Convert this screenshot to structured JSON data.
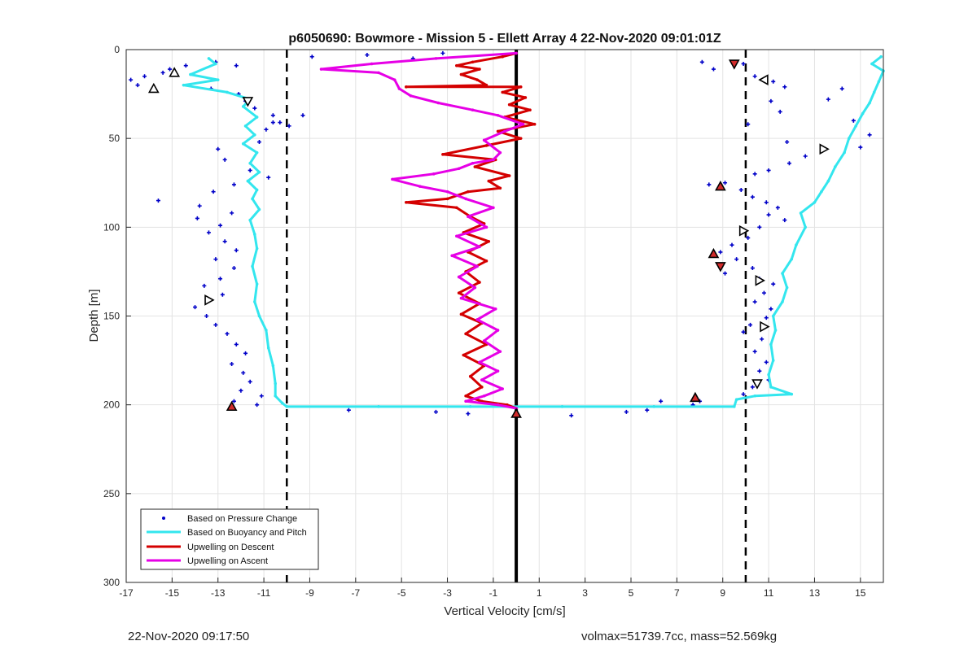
{
  "chart_data": {
    "type": "scatter",
    "title": "p6050690: Bowmore - Mission 5 - Ellett Array 4 22-Nov-2020 09:01:01Z",
    "xlabel": "Vertical Velocity [cm/s]",
    "ylabel": "Depth [m]",
    "xlim": [
      -17,
      16
    ],
    "ylim": [
      0,
      300
    ],
    "y_reversed": true,
    "grid": true,
    "x_ticks": [
      -17,
      -15,
      -13,
      -11,
      -9,
      -7,
      -5,
      -3,
      -1,
      1,
      3,
      5,
      7,
      9,
      11,
      13,
      15
    ],
    "y_ticks": [
      0,
      50,
      100,
      150,
      200,
      250,
      300
    ],
    "legend_position": "bottom-left",
    "colors": {
      "pressure": "#0000c8",
      "buoyancy": "#33e6ee",
      "descent": "#d40000",
      "ascent": "#e600e6",
      "guides": "#000000",
      "grid": "#e3e3e3",
      "triangle_fill": "#d22b2b"
    },
    "guide_lines": [
      {
        "x": -10,
        "style": "dashed"
      },
      {
        "x": 0,
        "style": "solid"
      },
      {
        "x": 10,
        "style": "dashed"
      }
    ],
    "series": [
      {
        "name": "Based on Pressure Change",
        "kind": "points",
        "points": [
          [
            -16.8,
            17
          ],
          [
            -16.5,
            20
          ],
          [
            -16.2,
            15
          ],
          [
            -15.4,
            13
          ],
          [
            -15.1,
            11
          ],
          [
            -14.4,
            9
          ],
          [
            -13.1,
            7
          ],
          [
            -12.2,
            9
          ],
          [
            -13.3,
            22
          ],
          [
            -12.1,
            25
          ],
          [
            -11.8,
            29
          ],
          [
            -11.4,
            33
          ],
          [
            -10.6,
            37
          ],
          [
            -10.3,
            41
          ],
          [
            -10.9,
            45
          ],
          [
            -11.2,
            52
          ],
          [
            -13.0,
            56
          ],
          [
            -12.7,
            62
          ],
          [
            -11.6,
            68
          ],
          [
            -10.8,
            72
          ],
          [
            -12.3,
            76
          ],
          [
            -13.2,
            80
          ],
          [
            -15.6,
            85
          ],
          [
            -13.8,
            88
          ],
          [
            -12.4,
            92
          ],
          [
            -13.9,
            95
          ],
          [
            -12.9,
            99
          ],
          [
            -13.4,
            103
          ],
          [
            -12.7,
            108
          ],
          [
            -12.2,
            113
          ],
          [
            -13.1,
            118
          ],
          [
            -12.3,
            123
          ],
          [
            -12.9,
            129
          ],
          [
            -13.6,
            133
          ],
          [
            -12.8,
            138
          ],
          [
            -14.0,
            145
          ],
          [
            -13.5,
            150
          ],
          [
            -13.1,
            155
          ],
          [
            -12.6,
            160
          ],
          [
            -12.2,
            166
          ],
          [
            -11.8,
            171
          ],
          [
            -12.4,
            177
          ],
          [
            -11.9,
            182
          ],
          [
            -11.6,
            187
          ],
          [
            -12.0,
            192
          ],
          [
            -11.1,
            195
          ],
          [
            -12.3,
            198
          ],
          [
            -11.3,
            200
          ],
          [
            -10.6,
            41
          ],
          [
            -9.9,
            43
          ],
          [
            -9.3,
            37
          ],
          [
            -8.9,
            4
          ],
          [
            -6.5,
            3
          ],
          [
            -4.5,
            5
          ],
          [
            -3.2,
            2
          ],
          [
            -7.3,
            203
          ],
          [
            -3.5,
            204
          ],
          [
            -2.1,
            205
          ],
          [
            2.4,
            206
          ],
          [
            4.8,
            204
          ],
          [
            5.7,
            203
          ],
          [
            6.3,
            198
          ],
          [
            8.1,
            7
          ],
          [
            8.6,
            11
          ],
          [
            9.9,
            8
          ],
          [
            10.4,
            15
          ],
          [
            11.2,
            18
          ],
          [
            11.7,
            21
          ],
          [
            11.1,
            29
          ],
          [
            11.5,
            35
          ],
          [
            10.1,
            42
          ],
          [
            11.8,
            52
          ],
          [
            12.6,
            60
          ],
          [
            11.9,
            64
          ],
          [
            11.0,
            68
          ],
          [
            10.4,
            70
          ],
          [
            9.1,
            75
          ],
          [
            8.4,
            76
          ],
          [
            9.8,
            79
          ],
          [
            10.3,
            83
          ],
          [
            10.9,
            86
          ],
          [
            11.4,
            89
          ],
          [
            11.0,
            93
          ],
          [
            11.7,
            96
          ],
          [
            10.6,
            100
          ],
          [
            10.1,
            106
          ],
          [
            9.4,
            110
          ],
          [
            8.9,
            114
          ],
          [
            9.6,
            118
          ],
          [
            10.3,
            123
          ],
          [
            9.1,
            126
          ],
          [
            10.6,
            129
          ],
          [
            11.2,
            132
          ],
          [
            10.8,
            137
          ],
          [
            10.4,
            142
          ],
          [
            11.1,
            146
          ],
          [
            10.9,
            151
          ],
          [
            10.2,
            155
          ],
          [
            9.9,
            159
          ],
          [
            10.7,
            163
          ],
          [
            10.4,
            170
          ],
          [
            10.9,
            176
          ],
          [
            10.6,
            181
          ],
          [
            11.0,
            186
          ],
          [
            10.3,
            190
          ],
          [
            9.9,
            194
          ],
          [
            8.0,
            198
          ],
          [
            7.7,
            200
          ],
          [
            15.4,
            48
          ],
          [
            15.0,
            55
          ],
          [
            14.7,
            40
          ],
          [
            14.2,
            22
          ],
          [
            13.6,
            28
          ]
        ]
      },
      {
        "name": "Based on Buoyancy and Pitch",
        "kind": "line",
        "points": [
          [
            -13.4,
            5
          ],
          [
            -13.1,
            8
          ],
          [
            -14.2,
            14
          ],
          [
            -13.0,
            17
          ],
          [
            -14.5,
            20
          ],
          [
            -12.6,
            24
          ],
          [
            -11.6,
            28
          ],
          [
            -11.9,
            32
          ],
          [
            -11.3,
            38
          ],
          [
            -11.8,
            43
          ],
          [
            -11.4,
            48
          ],
          [
            -11.9,
            53
          ],
          [
            -11.3,
            58
          ],
          [
            -11.6,
            64
          ],
          [
            -11.2,
            69
          ],
          [
            -11.7,
            74
          ],
          [
            -11.3,
            79
          ],
          [
            -11.5,
            84
          ],
          [
            -11.2,
            90
          ],
          [
            -11.6,
            96
          ],
          [
            -11.4,
            104
          ],
          [
            -11.3,
            112
          ],
          [
            -11.5,
            122
          ],
          [
            -11.3,
            132
          ],
          [
            -11.4,
            142
          ],
          [
            -11.2,
            150
          ],
          [
            -10.9,
            158
          ],
          [
            -10.8,
            168
          ],
          [
            -10.6,
            178
          ],
          [
            -10.5,
            188
          ],
          [
            -10.5,
            195
          ],
          [
            -10.2,
            199
          ],
          [
            -10.0,
            201
          ],
          [
            -6.0,
            201
          ],
          [
            -2.0,
            201
          ],
          [
            2.0,
            201
          ],
          [
            6.0,
            201
          ],
          [
            9.5,
            201
          ],
          [
            9.6,
            197
          ],
          [
            10.4,
            195
          ],
          [
            12.0,
            194
          ],
          [
            11.1,
            190
          ],
          [
            11.0,
            183
          ],
          [
            11.2,
            175
          ],
          [
            11.1,
            166
          ],
          [
            11.3,
            158
          ],
          [
            11.2,
            150
          ],
          [
            11.6,
            142
          ],
          [
            11.8,
            134
          ],
          [
            11.6,
            126
          ],
          [
            12.0,
            118
          ],
          [
            12.2,
            110
          ],
          [
            12.6,
            100
          ],
          [
            12.4,
            92
          ],
          [
            13.0,
            86
          ],
          [
            13.3,
            80
          ],
          [
            13.6,
            74
          ],
          [
            13.9,
            66
          ],
          [
            14.3,
            58
          ],
          [
            14.5,
            50
          ],
          [
            14.8,
            43
          ],
          [
            15.1,
            36
          ],
          [
            15.4,
            30
          ],
          [
            15.6,
            24
          ],
          [
            15.8,
            18
          ],
          [
            16.0,
            12
          ],
          [
            15.5,
            8
          ],
          [
            15.9,
            4
          ]
        ]
      },
      {
        "name": "Upwelling on Descent",
        "kind": "line",
        "points": [
          [
            0,
            2
          ],
          [
            -0.6,
            4
          ],
          [
            -1.9,
            7
          ],
          [
            -2.6,
            9
          ],
          [
            -1.6,
            11
          ],
          [
            -2.4,
            14
          ],
          [
            -1.7,
            17
          ],
          [
            -1.3,
            20
          ],
          [
            -4.8,
            21
          ],
          [
            0.2,
            21
          ],
          [
            -0.6,
            24
          ],
          [
            0.4,
            27
          ],
          [
            -0.3,
            31
          ],
          [
            0.6,
            34
          ],
          [
            -0.5,
            38
          ],
          [
            0.8,
            42
          ],
          [
            -0.8,
            46
          ],
          [
            0.2,
            50
          ],
          [
            -1.3,
            54
          ],
          [
            -3.2,
            59
          ],
          [
            -0.9,
            62
          ],
          [
            -1.8,
            66
          ],
          [
            -0.3,
            71
          ],
          [
            -1.2,
            74
          ],
          [
            -0.7,
            78
          ],
          [
            -2.1,
            80
          ],
          [
            -3.0,
            84
          ],
          [
            -4.8,
            86
          ],
          [
            -2.6,
            89
          ],
          [
            -2.0,
            94
          ],
          [
            -1.4,
            98
          ],
          [
            -2.3,
            103
          ],
          [
            -1.2,
            108
          ],
          [
            -2.1,
            114
          ],
          [
            -1.3,
            119
          ],
          [
            -2.2,
            125
          ],
          [
            -1.6,
            131
          ],
          [
            -2.5,
            137
          ],
          [
            -1.6,
            143
          ],
          [
            -2.4,
            149
          ],
          [
            -1.5,
            154
          ],
          [
            -2.2,
            160
          ],
          [
            -1.3,
            166
          ],
          [
            -2.3,
            172
          ],
          [
            -1.4,
            178
          ],
          [
            -2.0,
            184
          ],
          [
            -1.5,
            190
          ],
          [
            -2.2,
            195
          ],
          [
            -1.5,
            198
          ],
          [
            -0.4,
            200
          ],
          [
            0.0,
            202
          ]
        ]
      },
      {
        "name": "Upwelling on Ascent",
        "kind": "line",
        "points": [
          [
            0,
            2
          ],
          [
            -3.5,
            5
          ],
          [
            -6.3,
            8
          ],
          [
            -8.5,
            11
          ],
          [
            -6.0,
            13
          ],
          [
            -5.3,
            17
          ],
          [
            -5.1,
            22
          ],
          [
            -4.6,
            26
          ],
          [
            -3.4,
            30
          ],
          [
            -1.9,
            34
          ],
          [
            -0.8,
            37
          ],
          [
            0.3,
            42
          ],
          [
            -0.5,
            46
          ],
          [
            -1.4,
            51
          ],
          [
            -0.7,
            58
          ],
          [
            -1.0,
            62
          ],
          [
            -1.9,
            64
          ],
          [
            -2.5,
            67
          ],
          [
            -3.6,
            70
          ],
          [
            -5.4,
            73
          ],
          [
            -4.2,
            77
          ],
          [
            -3.0,
            80
          ],
          [
            -2.2,
            84
          ],
          [
            -1.0,
            89
          ],
          [
            -2.1,
            94
          ],
          [
            -1.3,
            100
          ],
          [
            -2.6,
            105
          ],
          [
            -1.6,
            111
          ],
          [
            -2.8,
            116
          ],
          [
            -1.7,
            122
          ],
          [
            -2.5,
            128
          ],
          [
            -1.8,
            134
          ],
          [
            -2.4,
            140
          ],
          [
            -0.9,
            146
          ],
          [
            -1.7,
            152
          ],
          [
            -0.8,
            158
          ],
          [
            -1.4,
            164
          ],
          [
            -0.7,
            170
          ],
          [
            -1.6,
            176
          ],
          [
            -0.8,
            181
          ],
          [
            -1.5,
            186
          ],
          [
            -0.6,
            191
          ],
          [
            -1.4,
            195
          ],
          [
            -2.2,
            198
          ],
          [
            -0.8,
            200
          ],
          [
            0.0,
            202
          ]
        ]
      }
    ],
    "markers": [
      {
        "x": -15.8,
        "y": 22,
        "shape": "triangle-up",
        "filled": false
      },
      {
        "x": -14.9,
        "y": 13,
        "shape": "triangle-up",
        "filled": false
      },
      {
        "x": -11.7,
        "y": 29,
        "shape": "triangle-down",
        "filled": false
      },
      {
        "x": -13.4,
        "y": 141,
        "shape": "triangle-right",
        "filled": false
      },
      {
        "x": -12.4,
        "y": 201,
        "shape": "triangle-up",
        "filled": true
      },
      {
        "x": 0.0,
        "y": 205,
        "shape": "triangle-up",
        "filled": true
      },
      {
        "x": 9.5,
        "y": 8,
        "shape": "triangle-down",
        "filled": true
      },
      {
        "x": 10.8,
        "y": 17,
        "shape": "triangle-left",
        "filled": false
      },
      {
        "x": 13.4,
        "y": 56,
        "shape": "triangle-right",
        "filled": false
      },
      {
        "x": 8.9,
        "y": 77,
        "shape": "triangle-up",
        "filled": true
      },
      {
        "x": 9.9,
        "y": 102,
        "shape": "triangle-right",
        "filled": false
      },
      {
        "x": 8.6,
        "y": 115,
        "shape": "triangle-up",
        "filled": true
      },
      {
        "x": 8.9,
        "y": 122,
        "shape": "triangle-down",
        "filled": true
      },
      {
        "x": 10.6,
        "y": 130,
        "shape": "triangle-right",
        "filled": false
      },
      {
        "x": 10.8,
        "y": 156,
        "shape": "triangle-right",
        "filled": false
      },
      {
        "x": 10.5,
        "y": 188,
        "shape": "triangle-down",
        "filled": false
      },
      {
        "x": 7.8,
        "y": 196,
        "shape": "triangle-up",
        "filled": true
      }
    ]
  },
  "footer": {
    "timestamp": "22-Nov-2020 09:17:50",
    "stats": "volmax=51739.7cc, mass=52.569kg"
  }
}
